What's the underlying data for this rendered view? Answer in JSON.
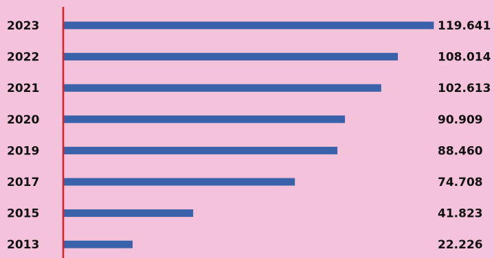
{
  "chart_data": {
    "type": "bar",
    "orientation": "horizontal",
    "categories": [
      "2023",
      "2022",
      "2021",
      "2020",
      "2019",
      "2017",
      "2015",
      "2013"
    ],
    "values": [
      119641,
      108014,
      102613,
      90909,
      88460,
      74708,
      41823,
      22226
    ],
    "value_labels": [
      "119.641",
      "108.014",
      "102.613",
      "90.909",
      "88.460",
      "74.708",
      "41.823",
      "22.226"
    ],
    "title": "",
    "xlabel": "",
    "ylabel": "",
    "xlim": [
      0,
      120000
    ],
    "grid": false,
    "legend": "none"
  },
  "colors": {
    "background": "#f5c2db",
    "bar": "#3a62ab",
    "axis": "#e31b23",
    "text": "#111111"
  }
}
